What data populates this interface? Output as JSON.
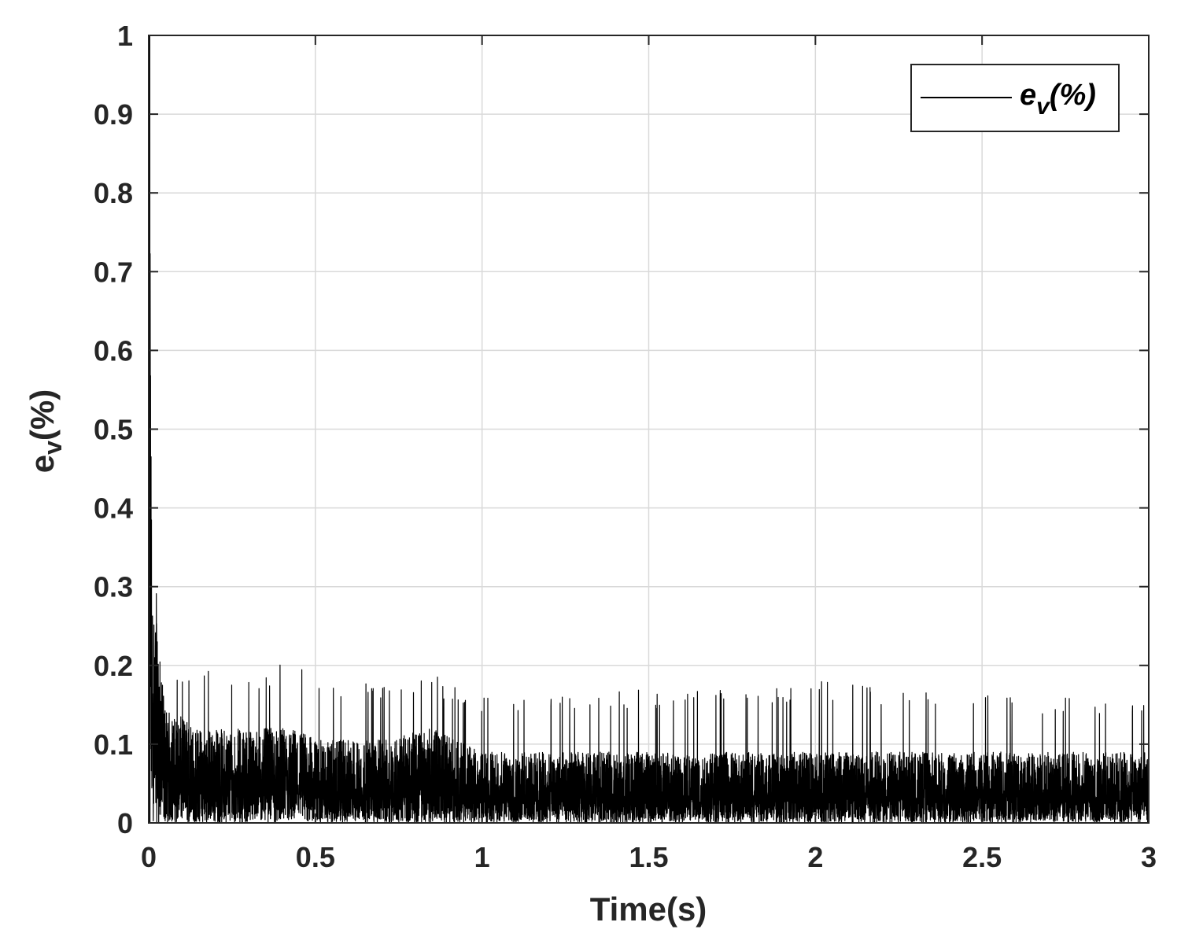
{
  "chart_data": {
    "type": "line",
    "title": "",
    "xlabel": "Time(s)",
    "ylabel": {
      "base": "e",
      "sub": "v",
      "tail": "(%)"
    },
    "xlim": [
      0,
      3
    ],
    "ylim": [
      0,
      1
    ],
    "xticks": [
      0,
      0.5,
      1,
      1.5,
      2,
      2.5,
      3
    ],
    "xtick_labels": [
      "0",
      "0.5",
      "1",
      "1.5",
      "2",
      "2.5",
      "3"
    ],
    "yticks": [
      0,
      0.1,
      0.2,
      0.3,
      0.4,
      0.5,
      0.6,
      0.7,
      0.8,
      0.9,
      1
    ],
    "ytick_labels": [
      "0",
      "0.1",
      "0.2",
      "0.3",
      "0.4",
      "0.5",
      "0.6",
      "0.7",
      "0.8",
      "0.9",
      "1"
    ],
    "grid": true,
    "legend_position": "top-right",
    "series": [
      {
        "name": {
          "base": "e",
          "sub": "v",
          "tail": "(%)"
        },
        "color": "#000000",
        "description_points": {
          "x": [
            0,
            0.004,
            0.01,
            0.02,
            0.03,
            0.04,
            0.05,
            0.07,
            0.1,
            0.15,
            0.2,
            0.3,
            0.45,
            0.5,
            0.7,
            0.85,
            1.0,
            1.2,
            1.5,
            2.0,
            2.5,
            3.0
          ],
          "y_upper_envelope": [
            1.0,
            1.0,
            0.34,
            0.33,
            0.31,
            0.25,
            0.26,
            0.2,
            0.2,
            0.19,
            0.22,
            0.19,
            0.22,
            0.18,
            0.18,
            0.19,
            0.16,
            0.16,
            0.17,
            0.18,
            0.17,
            0.15
          ],
          "y_typical_level": [
            0.0,
            0.5,
            0.2,
            0.18,
            0.15,
            0.12,
            0.1,
            0.09,
            0.09,
            0.08,
            0.08,
            0.08,
            0.08,
            0.07,
            0.07,
            0.08,
            0.06,
            0.06,
            0.06,
            0.06,
            0.06,
            0.06
          ]
        }
      }
    ]
  }
}
